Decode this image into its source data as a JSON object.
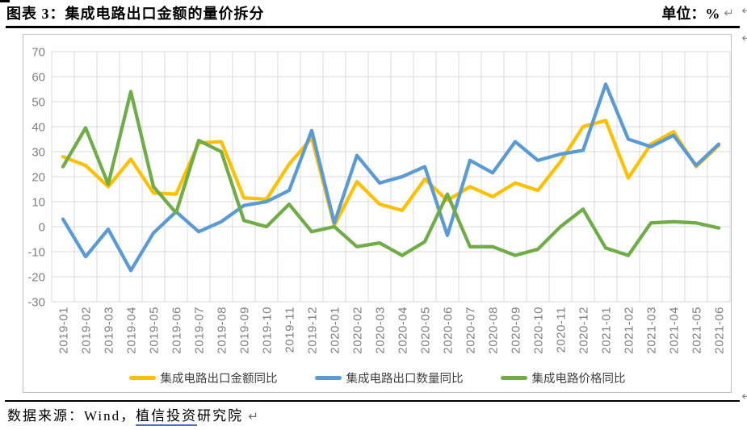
{
  "header": {
    "title": "图表 3：集成电路出口金额的量价拆分",
    "unit_label": "单位：%",
    "paragraph_mark": "↵"
  },
  "footer": {
    "source_prefix": "数据来源：Wind，",
    "source_link_text": "植信投资",
    "source_suffix": "研究院",
    "paragraph_mark": "↵"
  },
  "chart_style": {
    "border_color": "#bfbfbf",
    "gridline_color": "#d9d9d9",
    "axis_label_color": "#7f7f7f",
    "legend_text_color": "#404040",
    "line_width": 4.3
  },
  "chart_data": {
    "type": "line",
    "title": "",
    "xlabel": "",
    "ylabel": "",
    "ylim": [
      -30,
      70
    ],
    "yticks": [
      70,
      60,
      50,
      40,
      30,
      20,
      10,
      0,
      -10,
      -20,
      -30
    ],
    "grid": true,
    "legend_position": "bottom",
    "categories": [
      "2019-01",
      "2019-02",
      "2019-03",
      "2019-04",
      "2019-05",
      "2019-06",
      "2019-07",
      "2019-08",
      "2019-09",
      "2019-10",
      "2019-11",
      "2019-12",
      "2020-01",
      "2020-02",
      "2020-03",
      "2020-04",
      "2020-05",
      "2020-06",
      "2020-07",
      "2020-08",
      "2020-09",
      "2020-10",
      "2020-11",
      "2020-12",
      "2021-01",
      "2021-02",
      "2021-03",
      "2021-04",
      "2021-05",
      "2021-06"
    ],
    "series": [
      {
        "name": "集成电路出口金额同比",
        "color": "#FFC000",
        "values": [
          28,
          24.5,
          16,
          27,
          13.5,
          13,
          33.5,
          34,
          11.5,
          11,
          25,
          35.5,
          0.5,
          18,
          9,
          6.5,
          19,
          10.5,
          16,
          12,
          17.5,
          14.5,
          26,
          40,
          42.5,
          19.5,
          33,
          38,
          24,
          32.5
        ]
      },
      {
        "name": "集成电路出口数量同比",
        "color": "#5B9BD5",
        "values": [
          3,
          -12,
          -1,
          -17.5,
          -2.5,
          6,
          -2,
          2,
          8.5,
          10,
          14.5,
          38.5,
          1.5,
          28.5,
          17.5,
          20,
          24,
          -3.5,
          26.5,
          21.5,
          34,
          26.5,
          29,
          30.5,
          57,
          35,
          32,
          36.5,
          24.5,
          33
        ]
      },
      {
        "name": "集成电路价格同比",
        "color": "#70AD47",
        "values": [
          24,
          39.5,
          17,
          54,
          16,
          5.5,
          34.5,
          30,
          2.5,
          0,
          9,
          -2,
          0,
          -8,
          -6.5,
          -11.5,
          -6,
          13,
          -8,
          -8,
          -11.5,
          -9,
          0,
          7,
          -8.5,
          -11.5,
          1.5,
          2,
          1.5,
          -0.5
        ]
      }
    ]
  }
}
